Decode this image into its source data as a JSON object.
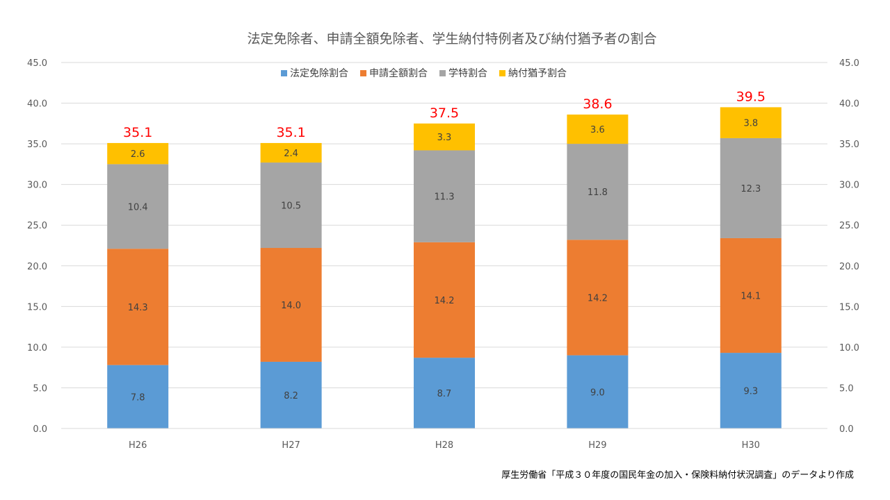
{
  "chart_data": {
    "type": "bar",
    "stacked": true,
    "title": "法定免除者、申請全額免除者、学生納付特例者及び納付猶予者の割合",
    "categories": [
      "H26",
      "H27",
      "H28",
      "H29",
      "H30"
    ],
    "series": [
      {
        "name": "法定免除割合",
        "color": "#5b9bd5",
        "values": [
          7.8,
          8.2,
          8.7,
          9.0,
          9.3
        ]
      },
      {
        "name": "申請全額割合",
        "color": "#ed7d31",
        "values": [
          14.3,
          14.0,
          14.2,
          14.2,
          14.1
        ]
      },
      {
        "name": "学特割合",
        "color": "#a5a5a5",
        "values": [
          10.4,
          10.5,
          11.3,
          11.8,
          12.3
        ]
      },
      {
        "name": "納付猶予割合",
        "color": "#ffc000",
        "values": [
          2.6,
          2.4,
          3.3,
          3.6,
          3.8
        ]
      }
    ],
    "totals": [
      "35.1",
      "35.1",
      "37.5",
      "38.6",
      "39.5"
    ],
    "ylim": [
      0,
      45
    ],
    "y_ticks": [
      "0.0",
      "5.0",
      "10.0",
      "15.0",
      "20.0",
      "25.0",
      "30.0",
      "35.0",
      "40.0",
      "45.0"
    ],
    "y2_ticks": [
      "0.0",
      "5.0",
      "10.0",
      "15.0",
      "20.0",
      "25.0",
      "30.0",
      "35.0",
      "40.0",
      "45.0"
    ],
    "grid": true,
    "legend_position": "top",
    "total_label_color": "#ff0000"
  },
  "source_note": "厚生労働省「平成３０年度の国民年金の加入・保険料納付状況調査」のデータより作成"
}
